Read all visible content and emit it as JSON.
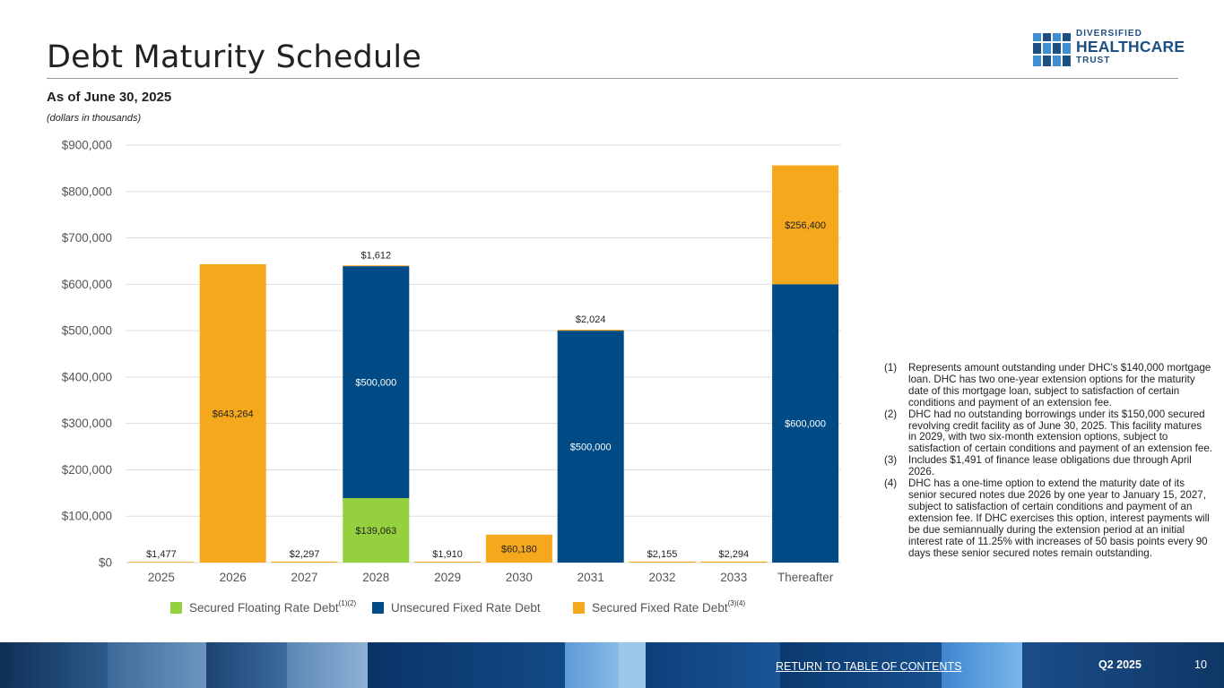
{
  "page": {
    "title": "Debt Maturity Schedule",
    "subtitle": "As of June 30, 2025",
    "units_note": "(dollars in thousands)"
  },
  "logo": {
    "line1": "DIVERSIFIED",
    "line2": "HEALTHCARE",
    "line3": "TRUST"
  },
  "colors": {
    "floating": "#95d13e",
    "unsecured": "#004b85",
    "secured_fixed": "#f6a81c",
    "grid": "#dddddd",
    "brand": "#1d4f83"
  },
  "chart_data": {
    "type": "bar",
    "stacked": true,
    "categories": [
      "2025",
      "2026",
      "2027",
      "2028",
      "2029",
      "2030",
      "2031",
      "2032",
      "2033",
      "Thereafter"
    ],
    "series": [
      {
        "name": "Secured Floating Rate Debt",
        "footnote": "(1)(2)",
        "values": [
          0,
          0,
          0,
          139063,
          0,
          0,
          0,
          0,
          0,
          0
        ]
      },
      {
        "name": "Unsecured Fixed Rate Debt",
        "footnote": "",
        "values": [
          0,
          0,
          0,
          500000,
          0,
          0,
          500000,
          0,
          0,
          600000
        ]
      },
      {
        "name": "Secured Fixed Rate Debt",
        "footnote": "(3)(4)",
        "values": [
          1477,
          643264,
          2297,
          1612,
          1910,
          60180,
          2024,
          2155,
          2294,
          256400
        ]
      }
    ],
    "labels": [
      {
        "category": "2025",
        "series": "Secured Fixed Rate Debt",
        "text": "$1,477",
        "placement": "above"
      },
      {
        "category": "2026",
        "series": "Secured Fixed Rate Debt",
        "text": "$643,264",
        "placement": "inside"
      },
      {
        "category": "2027",
        "series": "Secured Fixed Rate Debt",
        "text": "$2,297",
        "placement": "above"
      },
      {
        "category": "2028",
        "series": "Secured Floating Rate Debt",
        "text": "$139,063",
        "placement": "inside"
      },
      {
        "category": "2028",
        "series": "Unsecured Fixed Rate Debt",
        "text": "$500,000",
        "placement": "inside"
      },
      {
        "category": "2028",
        "series": "Secured Fixed Rate Debt",
        "text": "$1,612",
        "placement": "above"
      },
      {
        "category": "2029",
        "series": "Secured Fixed Rate Debt",
        "text": "$1,910",
        "placement": "above"
      },
      {
        "category": "2030",
        "series": "Secured Fixed Rate Debt",
        "text": "$60,180",
        "placement": "inside"
      },
      {
        "category": "2031",
        "series": "Unsecured Fixed Rate Debt",
        "text": "$500,000",
        "placement": "inside"
      },
      {
        "category": "2031",
        "series": "Secured Fixed Rate Debt",
        "text": "$2,024",
        "placement": "above"
      },
      {
        "category": "2032",
        "series": "Secured Fixed Rate Debt",
        "text": "$2,155",
        "placement": "above"
      },
      {
        "category": "2033",
        "series": "Secured Fixed Rate Debt",
        "text": "$2,294",
        "placement": "above"
      },
      {
        "category": "Thereafter",
        "series": "Unsecured Fixed Rate Debt",
        "text": "$600,000",
        "placement": "inside"
      },
      {
        "category": "Thereafter",
        "series": "Secured Fixed Rate Debt",
        "text": "$256,400",
        "placement": "inside"
      }
    ],
    "yticks": [
      "$0",
      "$100,000",
      "$200,000",
      "$300,000",
      "$400,000",
      "$500,000",
      "$600,000",
      "$700,000",
      "$800,000",
      "$900,000"
    ],
    "ylim": [
      0,
      900000
    ],
    "grid": true,
    "legend_position": "bottom",
    "title": "",
    "xlabel": "",
    "ylabel": ""
  },
  "footnotes": [
    {
      "num": "(1)",
      "text": "Represents amount outstanding under DHC's $140,000 mortgage loan. DHC has two one-year extension options for the maturity date of this mortgage loan, subject to satisfaction of certain conditions and payment of an extension fee."
    },
    {
      "num": "(2)",
      "text": "DHC had no outstanding borrowings under its $150,000 secured revolving credit facility as of June 30, 2025. This facility matures in 2029, with two six-month extension options, subject to satisfaction of certain conditions and payment of an extension fee."
    },
    {
      "num": "(3)",
      "text": "Includes $1,491 of finance lease obligations due through April 2026."
    },
    {
      "num": "(4)",
      "text": "DHC has a one-time option to extend the maturity date of its senior secured notes due 2026 by one year to January 15, 2027, subject to satisfaction of certain conditions and payment of an extension fee. If DHC exercises this option, interest payments will be due semiannually during the extension period at an initial interest rate of 11.25% with increases of 50 basis points every 90 days these senior secured notes remain outstanding."
    }
  ],
  "footer": {
    "toc_link": "RETURN TO TABLE OF CONTENTS",
    "quarter": "Q2 2025",
    "page_number": "10"
  }
}
